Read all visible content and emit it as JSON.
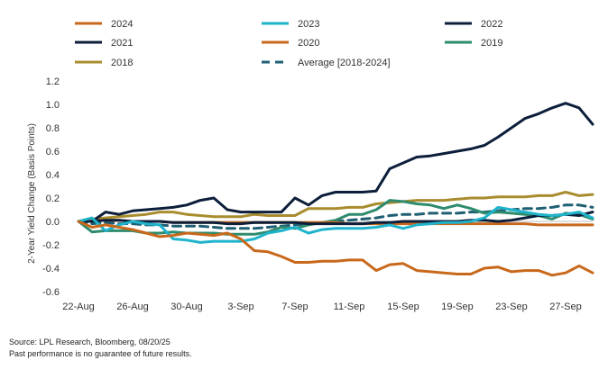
{
  "chart_data": {
    "type": "line",
    "title": "",
    "xlabel": "",
    "ylabel": "2-Year Yield Change (Basis Points)",
    "ylim": [
      -0.6,
      1.2
    ],
    "yticks": [
      -0.6,
      -0.4,
      -0.2,
      0.0,
      0.2,
      0.4,
      0.6,
      0.8,
      1.0,
      1.2
    ],
    "ytick_labels": [
      "-0.6",
      "-0.4",
      "-0.2",
      "0.0",
      "0.2",
      "0.4",
      "0.6",
      "0.8",
      "1.0",
      "1.2"
    ],
    "x_start": "22-Aug",
    "x_end": "29-Sep",
    "xtick_labels": [
      "22-Aug",
      "26-Aug",
      "30-Aug",
      "3-Sep",
      "7-Sep",
      "11-Sep",
      "15-Sep",
      "19-Sep",
      "23-Sep",
      "27-Sep"
    ],
    "grid": false,
    "legend_position": "top",
    "series": [
      {
        "name": "2024",
        "color": "#C8681B",
        "dash": false,
        "x": [
          0,
          1,
          2,
          3,
          4,
          5,
          6,
          7,
          8,
          9,
          10,
          11,
          12,
          13,
          14,
          15,
          16,
          17,
          18,
          19,
          20,
          21,
          22,
          23,
          24,
          25,
          26,
          27,
          28,
          29,
          30,
          31,
          32,
          33,
          34,
          35,
          36,
          37,
          38
        ],
        "y": [
          0.0,
          -0.05,
          -0.03,
          -0.05,
          -0.07,
          -0.1,
          -0.13,
          -0.12,
          -0.1,
          -0.11,
          -0.12,
          -0.1,
          -0.15,
          -0.25,
          -0.26,
          -0.3,
          -0.35,
          -0.35,
          -0.34,
          -0.34,
          -0.33,
          -0.33,
          -0.42,
          -0.37,
          -0.36,
          -0.42,
          -0.43,
          -0.44,
          -0.45,
          -0.45,
          -0.4,
          -0.39,
          -0.43,
          -0.42,
          -0.42,
          -0.46,
          -0.44,
          -0.38,
          -0.44
        ]
      },
      {
        "name": "2023",
        "color": "#1FB3CC",
        "dash": false,
        "x": [
          0,
          1,
          2,
          3,
          4,
          5,
          6,
          7,
          8,
          9,
          10,
          11,
          12,
          13,
          14,
          15,
          16,
          17,
          18,
          19,
          20,
          21,
          22,
          23,
          24,
          25,
          26,
          27,
          28,
          29,
          30,
          31,
          32,
          33,
          34,
          35,
          36,
          37,
          38
        ],
        "y": [
          0.0,
          0.03,
          -0.08,
          -0.03,
          0.0,
          -0.02,
          -0.03,
          -0.15,
          -0.16,
          -0.18,
          -0.17,
          -0.17,
          -0.17,
          -0.15,
          -0.1,
          -0.08,
          -0.05,
          -0.1,
          -0.07,
          -0.06,
          -0.06,
          -0.06,
          -0.05,
          -0.03,
          -0.06,
          -0.03,
          -0.02,
          -0.01,
          -0.01,
          0.0,
          0.03,
          0.12,
          0.1,
          0.08,
          0.06,
          0.05,
          0.06,
          0.08,
          0.03
        ]
      },
      {
        "name": "2022",
        "color": "#0C1E3A",
        "dash": false,
        "x": [
          0,
          1,
          2,
          3,
          4,
          5,
          6,
          7,
          8,
          9,
          10,
          11,
          12,
          13,
          14,
          15,
          16,
          17,
          18,
          19,
          20,
          21,
          22,
          23,
          24,
          25,
          26,
          27,
          28,
          29,
          30,
          31,
          32,
          33,
          34,
          35,
          36,
          37,
          38
        ],
        "y": [
          0.0,
          0.0,
          0.08,
          0.06,
          0.09,
          0.1,
          0.11,
          0.12,
          0.14,
          0.18,
          0.2,
          0.1,
          0.08,
          0.08,
          0.08,
          0.08,
          0.2,
          0.14,
          0.22,
          0.25,
          0.25,
          0.25,
          0.26,
          0.45,
          0.5,
          0.55,
          0.56,
          0.58,
          0.6,
          0.62,
          0.65,
          0.72,
          0.8,
          0.88,
          0.92,
          0.97,
          1.01,
          0.97,
          0.83
        ]
      },
      {
        "name": "2021",
        "color": "#0C1E3A",
        "dash": false,
        "x": [
          0,
          1,
          2,
          3,
          4,
          5,
          6,
          7,
          8,
          9,
          10,
          11,
          12,
          13,
          14,
          15,
          16,
          17,
          18,
          19,
          20,
          21,
          22,
          23,
          24,
          25,
          26,
          27,
          28,
          29,
          30,
          31,
          32,
          33,
          34,
          35,
          36,
          37,
          38
        ],
        "y": [
          0.0,
          0.0,
          0.01,
          0.01,
          0.0,
          0.0,
          0.0,
          -0.01,
          -0.01,
          -0.01,
          -0.01,
          -0.02,
          -0.02,
          -0.01,
          -0.01,
          -0.01,
          -0.01,
          -0.02,
          -0.02,
          -0.02,
          -0.02,
          -0.02,
          -0.01,
          -0.01,
          0.0,
          0.0,
          0.0,
          0.0,
          0.0,
          0.01,
          0.01,
          0.0,
          0.01,
          0.03,
          0.05,
          0.05,
          0.06,
          0.05,
          0.08
        ]
      },
      {
        "name": "2020",
        "color": "#C8681B",
        "dash": false,
        "x": [
          0,
          1,
          2,
          3,
          4,
          5,
          6,
          7,
          8,
          9,
          10,
          11,
          12,
          13,
          14,
          15,
          16,
          17,
          18,
          19,
          20,
          21,
          22,
          23,
          24,
          25,
          26,
          27,
          28,
          29,
          30,
          31,
          32,
          33,
          34,
          35,
          36,
          37,
          38
        ],
        "y": [
          0.0,
          0.01,
          0.01,
          0.01,
          0.0,
          0.0,
          0.0,
          -0.01,
          -0.01,
          -0.01,
          -0.01,
          -0.01,
          -0.01,
          -0.01,
          -0.01,
          -0.01,
          -0.01,
          -0.01,
          -0.01,
          -0.01,
          -0.02,
          -0.02,
          -0.02,
          -0.02,
          -0.02,
          -0.02,
          -0.02,
          -0.02,
          -0.02,
          -0.02,
          -0.02,
          -0.02,
          -0.02,
          -0.02,
          -0.03,
          -0.03,
          -0.03,
          -0.03,
          -0.03
        ]
      },
      {
        "name": "2019",
        "color": "#2E8B6E",
        "dash": false,
        "x": [
          0,
          1,
          2,
          3,
          4,
          5,
          6,
          7,
          8,
          9,
          10,
          11,
          12,
          13,
          14,
          15,
          16,
          17,
          18,
          19,
          20,
          21,
          22,
          23,
          24,
          25,
          26,
          27,
          28,
          29,
          30,
          31,
          32,
          33,
          34,
          35,
          36,
          37,
          38
        ],
        "y": [
          0.0,
          -0.09,
          -0.08,
          -0.08,
          -0.08,
          -0.1,
          -0.1,
          -0.09,
          -0.1,
          -0.1,
          -0.1,
          -0.11,
          -0.11,
          -0.11,
          -0.09,
          -0.05,
          -0.06,
          -0.03,
          -0.01,
          0.01,
          0.06,
          0.06,
          0.1,
          0.18,
          0.17,
          0.15,
          0.14,
          0.11,
          0.14,
          0.11,
          0.07,
          0.08,
          0.07,
          0.06,
          0.05,
          0.02,
          0.07,
          0.06,
          0.02
        ]
      },
      {
        "name": "2018",
        "color": "#A88C2E",
        "dash": false,
        "x": [
          0,
          1,
          2,
          3,
          4,
          5,
          6,
          7,
          8,
          9,
          10,
          11,
          12,
          13,
          14,
          15,
          16,
          17,
          18,
          19,
          20,
          21,
          22,
          23,
          24,
          25,
          26,
          27,
          28,
          29,
          30,
          31,
          32,
          33,
          34,
          35,
          36,
          37,
          38
        ],
        "y": [
          0.0,
          0.02,
          0.03,
          0.04,
          0.05,
          0.06,
          0.08,
          0.08,
          0.06,
          0.05,
          0.04,
          0.04,
          0.04,
          0.06,
          0.05,
          0.05,
          0.05,
          0.11,
          0.11,
          0.11,
          0.12,
          0.12,
          0.15,
          0.16,
          0.17,
          0.18,
          0.18,
          0.18,
          0.19,
          0.2,
          0.2,
          0.21,
          0.21,
          0.21,
          0.22,
          0.22,
          0.25,
          0.22,
          0.23
        ]
      },
      {
        "name": "Average  [2018-2024]",
        "color": "#1F5F73",
        "dash": true,
        "x": [
          0,
          1,
          2,
          3,
          4,
          5,
          6,
          7,
          8,
          9,
          10,
          11,
          12,
          13,
          14,
          15,
          16,
          17,
          18,
          19,
          20,
          21,
          22,
          23,
          24,
          25,
          26,
          27,
          28,
          29,
          30,
          31,
          32,
          33,
          34,
          35,
          36,
          37,
          38
        ],
        "y": [
          0.0,
          -0.02,
          -0.01,
          -0.02,
          -0.02,
          -0.03,
          -0.03,
          -0.04,
          -0.04,
          -0.04,
          -0.05,
          -0.06,
          -0.06,
          -0.06,
          -0.05,
          -0.04,
          -0.03,
          -0.02,
          -0.01,
          0.0,
          0.01,
          0.02,
          0.03,
          0.05,
          0.06,
          0.06,
          0.07,
          0.07,
          0.07,
          0.08,
          0.08,
          0.09,
          0.1,
          0.11,
          0.11,
          0.12,
          0.14,
          0.14,
          0.12
        ]
      }
    ]
  },
  "footer": {
    "source": "Source: LPL Research, Bloomberg, 08/20/25",
    "disclaimer": "Past performance is no guarantee of future results."
  }
}
